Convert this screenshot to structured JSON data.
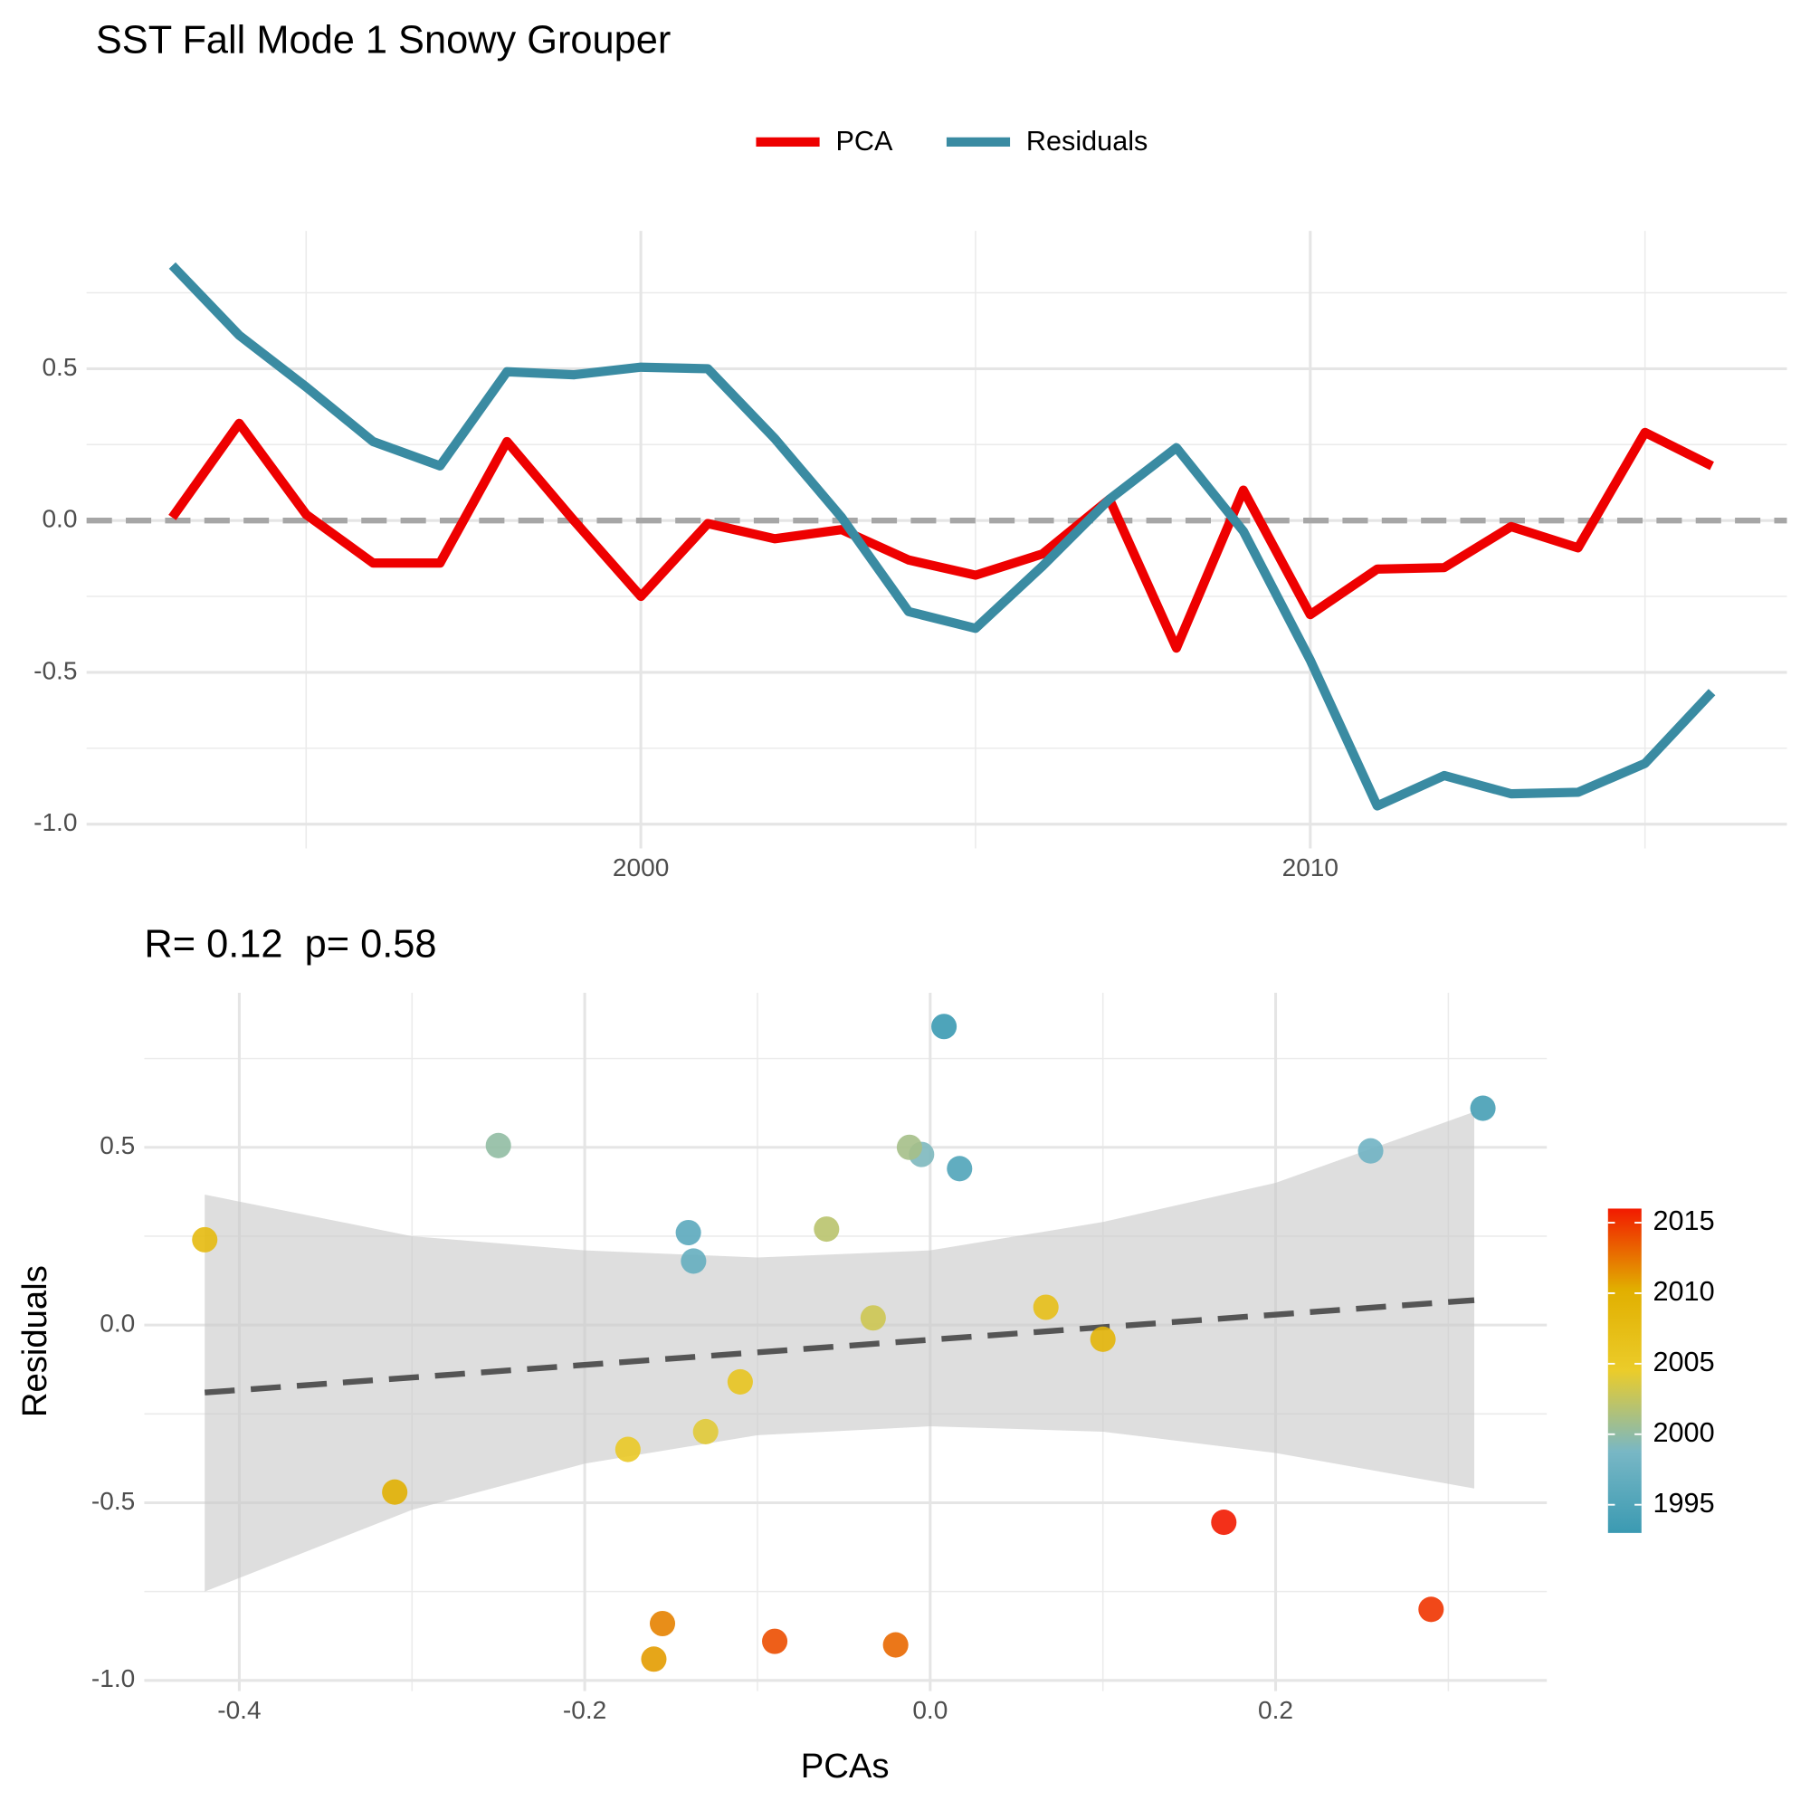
{
  "chart_data": [
    {
      "type": "line",
      "title": "SST Fall Mode 1 Snowy Grouper",
      "x": [
        1993,
        1994,
        1995,
        1996,
        1997,
        1998,
        1999,
        2000,
        2001,
        2002,
        2003,
        2004,
        2005,
        2006,
        2007,
        2008,
        2009,
        2010,
        2011,
        2012,
        2013,
        2014,
        2015,
        2016
      ],
      "series": [
        {
          "name": "PCA",
          "color": "#ee0000",
          "values": [
            0.01,
            0.32,
            0.02,
            -0.14,
            -0.14,
            0.26,
            0.0,
            -0.25,
            -0.01,
            -0.06,
            -0.03,
            -0.13,
            -0.18,
            -0.11,
            0.07,
            -0.42,
            0.1,
            -0.31,
            -0.16,
            -0.155,
            -0.02,
            -0.09,
            0.29,
            0.18
          ]
        },
        {
          "name": "Residuals",
          "color": "#3a8ba2",
          "values": [
            0.84,
            0.61,
            0.44,
            0.26,
            0.18,
            0.49,
            0.48,
            0.505,
            0.5,
            0.27,
            0.01,
            -0.3,
            -0.355,
            -0.15,
            0.07,
            0.24,
            -0.035,
            -0.46,
            -0.94,
            -0.84,
            -0.9,
            -0.895,
            -0.8,
            -0.565
          ]
        }
      ],
      "xlim": [
        1991.72,
        2017.12
      ],
      "xticks": [
        2000,
        2010
      ],
      "xminor": [
        1995,
        2005,
        2015
      ],
      "ylim": [
        -1.08,
        0.954
      ],
      "yticks": [
        {
          "value": -1,
          "label": "-1.0"
        },
        -0.5,
        {
          "value": 0,
          "label": "0.0"
        },
        0.5
      ],
      "yminor": [
        -0.75,
        -0.25,
        0.25,
        0.75
      ],
      "hline": 0,
      "grid": true,
      "legend": "top"
    },
    {
      "type": "scatter",
      "title": "R= 0.12  p= 0.58",
      "xlabel": "PCAs",
      "ylabel": "Residuals",
      "x": [
        0.008,
        0.32,
        0.017,
        -0.14,
        -0.137,
        0.255,
        -0.005,
        -0.25,
        -0.012,
        -0.06,
        -0.033,
        -0.13,
        -0.175,
        -0.11,
        0.067,
        -0.42,
        0.1,
        -0.31,
        -0.16,
        -0.155,
        -0.02,
        -0.09,
        0.29,
        0.17
      ],
      "y": [
        0.84,
        0.61,
        0.44,
        0.26,
        0.18,
        0.49,
        0.48,
        0.505,
        0.5,
        0.27,
        0.02,
        -0.3,
        -0.35,
        -0.16,
        0.05,
        0.24,
        -0.04,
        -0.47,
        -0.94,
        -0.84,
        -0.9,
        -0.89,
        -0.8,
        -0.555
      ],
      "years": [
        1993,
        1994,
        1995,
        1996,
        1997,
        1998,
        1999,
        2000,
        2001,
        2002,
        2003,
        2004,
        2005,
        2006,
        2007,
        2008,
        2009,
        2010,
        2011,
        2012,
        2013,
        2014,
        2015,
        2016
      ],
      "palette": [
        "#3b9ab2",
        "#78b7c5",
        "#ebcc2a",
        "#e1af00",
        "#f21a00"
      ],
      "colorlim": [
        1993,
        2016
      ],
      "colorticks": [
        1995,
        2000,
        2005,
        2010,
        2015
      ],
      "fit": {
        "x": [
          -0.42,
          0.315
        ],
        "y": [
          -0.19,
          0.07
        ]
      },
      "ribbon": {
        "x": [
          -0.42,
          -0.3,
          -0.2,
          -0.1,
          0,
          0.1,
          0.2,
          0.315
        ],
        "upper": [
          0.367,
          0.25,
          0.21,
          0.19,
          0.21,
          0.29,
          0.4,
          0.6
        ],
        "lower": [
          -0.75,
          -0.52,
          -0.39,
          -0.31,
          -0.285,
          -0.3,
          -0.36,
          -0.46
        ]
      },
      "xlim": [
        -0.455,
        0.357
      ],
      "xticks": [
        -0.4,
        -0.2,
        {
          "value": 0,
          "label": "0.0"
        },
        0.2
      ],
      "xminor": [
        -0.3,
        -0.1,
        0.1,
        0.3
      ],
      "ylim": [
        -1.03,
        0.935
      ],
      "yticks": [
        {
          "value": -1,
          "label": "-1.0"
        },
        -0.5,
        {
          "value": 0,
          "label": "0.0"
        },
        0.5
      ],
      "yminor": [
        -0.75,
        -0.25,
        0.25,
        0.75
      ],
      "grid": true
    }
  ]
}
